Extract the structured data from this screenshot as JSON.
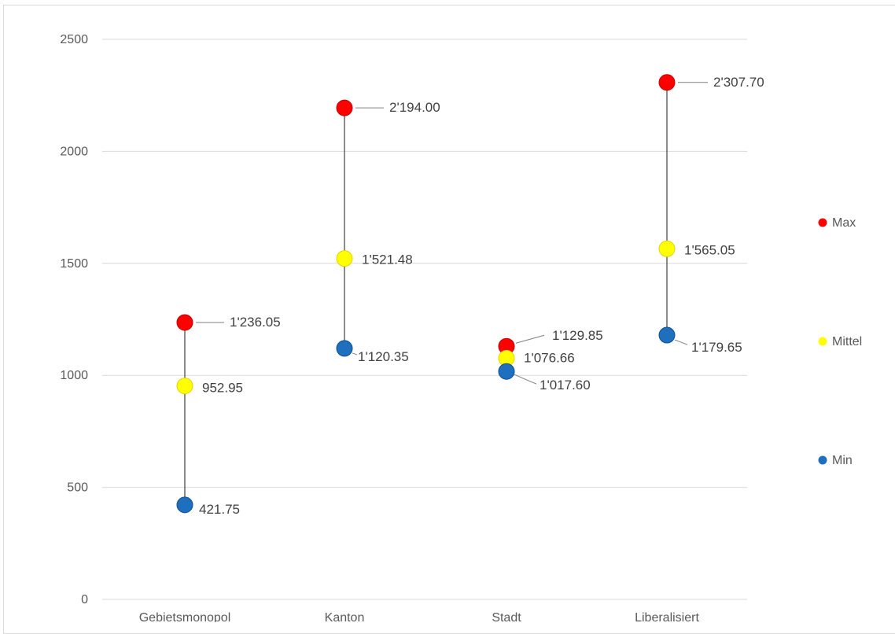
{
  "chart_data": {
    "type": "scatter",
    "categories": [
      "Gebietsmonopol",
      "Kanton",
      "Stadt",
      "Liberalisiert"
    ],
    "ylim": [
      0,
      2500
    ],
    "yticks": [
      0,
      500,
      1000,
      1500,
      2000,
      2500
    ],
    "ytick_labels": [
      "0",
      "500",
      "1000",
      "1500",
      "2000",
      "2500"
    ],
    "grid": true,
    "legend_position": "right",
    "series": [
      {
        "name": "Max",
        "color": "#ff0000",
        "values": [
          1236.05,
          2194.0,
          1129.85,
          2307.7
        ],
        "labels": [
          "1'236.05",
          "2'194.00",
          "1'129.85",
          "2'307.70"
        ]
      },
      {
        "name": "Mittel",
        "color": "#ffff00",
        "values": [
          952.95,
          1521.48,
          1076.66,
          1565.05
        ],
        "labels": [
          "952.95",
          "1'521.48",
          "1'076.66",
          "1'565.05"
        ]
      },
      {
        "name": "Min",
        "color": "#1f6fbf",
        "values": [
          421.75,
          1120.35,
          1017.6,
          1179.65
        ],
        "labels": [
          "421.75",
          "1'120.35",
          "1'017.60",
          "1'179.65"
        ]
      }
    ]
  }
}
